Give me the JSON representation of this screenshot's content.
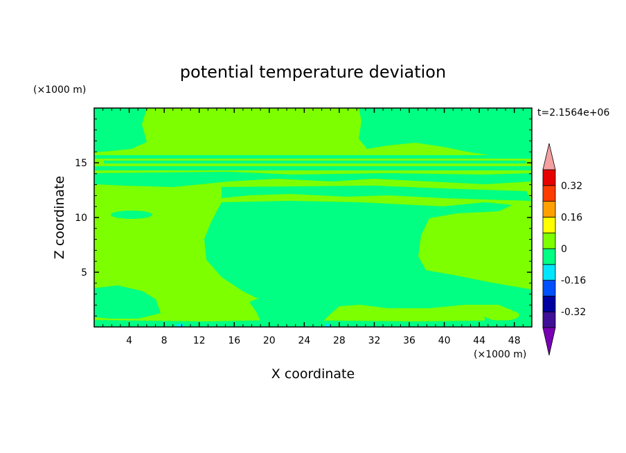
{
  "chart_data": {
    "type": "heatmap",
    "title": "potential temperature deviation",
    "xlabel": "X coordinate",
    "ylabel": "Z coordinate",
    "x_unit": "(×1000 m)",
    "y_unit": "(×1000 m)",
    "time_label": "t=2.1564e+06",
    "xlim": [
      0,
      50
    ],
    "ylim": [
      0,
      20
    ],
    "x_ticks": [
      4,
      8,
      12,
      16,
      20,
      24,
      28,
      32,
      36,
      40,
      44,
      48
    ],
    "y_ticks": [
      5,
      10,
      15
    ],
    "colorbar": {
      "levels": [
        -0.4,
        -0.32,
        -0.24,
        -0.16,
        -0.08,
        0,
        0.08,
        0.16,
        0.24,
        0.32,
        0.4
      ],
      "colors": [
        "#3f0f96",
        "#0000a0",
        "#0050ff",
        "#00e6ff",
        "#00ff82",
        "#7dff00",
        "#ffff00",
        "#ffa000",
        "#ff3c00",
        "#e60000"
      ],
      "under_color": "#7800b4",
      "over_color": "#f4a0a0",
      "tick_labels": [
        "-0.32",
        "-0.16",
        "0",
        "0.16",
        "0.32"
      ],
      "tick_values": [
        -0.32,
        -0.16,
        0,
        0.16,
        0.32
      ]
    },
    "background_field": "0 to 0.08",
    "regions_negative": "-0.08 to 0",
    "grid": false,
    "legend": "right (colorbar)"
  }
}
